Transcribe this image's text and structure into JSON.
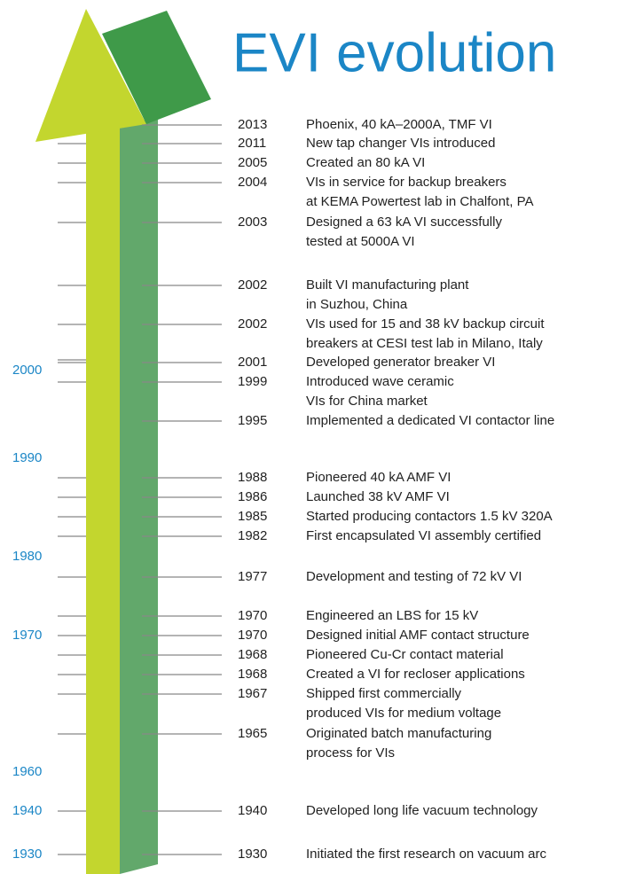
{
  "title": "EVI evolution",
  "decades": [
    "2000",
    "1990",
    "1980",
    "1970",
    "1960",
    "1940",
    "1930"
  ],
  "events": [
    {
      "year": "2013",
      "lines": [
        "Phoenix, 40 kA–2000A, TMF VI"
      ]
    },
    {
      "year": "2011",
      "lines": [
        "New tap changer VIs introduced"
      ]
    },
    {
      "year": "2005",
      "lines": [
        "Created an 80 kA VI"
      ]
    },
    {
      "year": "2004",
      "lines": [
        "VIs in service for backup breakers",
        "at KEMA Powertest lab in Chalfont, PA"
      ]
    },
    {
      "year": "2003",
      "lines": [
        "Designed a 63 kA VI successfully",
        "tested at 5000A VI"
      ]
    },
    {
      "year": "2002",
      "lines": [
        "Built VI manufacturing plant",
        "in Suzhou, China"
      ]
    },
    {
      "year": "2002",
      "lines": [
        "VIs used for 15 and 38 kV backup circuit",
        "breakers at CESI test lab in Milano, Italy"
      ]
    },
    {
      "year": "2001",
      "lines": [
        "Developed generator breaker VI"
      ]
    },
    {
      "year": "1999",
      "lines": [
        "Introduced wave ceramic",
        "VIs for China market"
      ]
    },
    {
      "year": "1995",
      "lines": [
        "Implemented a dedicated VI contactor line"
      ]
    },
    {
      "year": "1988",
      "lines": [
        "Pioneered 40 kA AMF VI"
      ]
    },
    {
      "year": "1986",
      "lines": [
        "Launched 38 kV AMF VI"
      ]
    },
    {
      "year": "1985",
      "lines": [
        "Started producing contactors 1.5 kV 320A"
      ]
    },
    {
      "year": "1982",
      "lines": [
        "First encapsulated VI assembly certified"
      ]
    },
    {
      "year": "1977",
      "lines": [
        "Development and testing of 72 kV VI"
      ]
    },
    {
      "year": "1970",
      "lines": [
        "Engineered an LBS for 15 kV"
      ]
    },
    {
      "year": "1970",
      "lines": [
        "Designed initial AMF contact structure"
      ]
    },
    {
      "year": "1968",
      "lines": [
        "Pioneered Cu-Cr contact material"
      ]
    },
    {
      "year": "1968",
      "lines": [
        "Created a VI for recloser applications"
      ]
    },
    {
      "year": "1967",
      "lines": [
        "Shipped first commercially",
        "produced VIs for medium voltage"
      ]
    },
    {
      "year": "1965",
      "lines": [
        "Originated batch manufacturing",
        "process for VIs"
      ]
    },
    {
      "year": "1940",
      "lines": [
        "Developed long life vacuum technology"
      ]
    },
    {
      "year": "1930",
      "lines": [
        "Initiated the first research on vacuum arc"
      ]
    }
  ]
}
